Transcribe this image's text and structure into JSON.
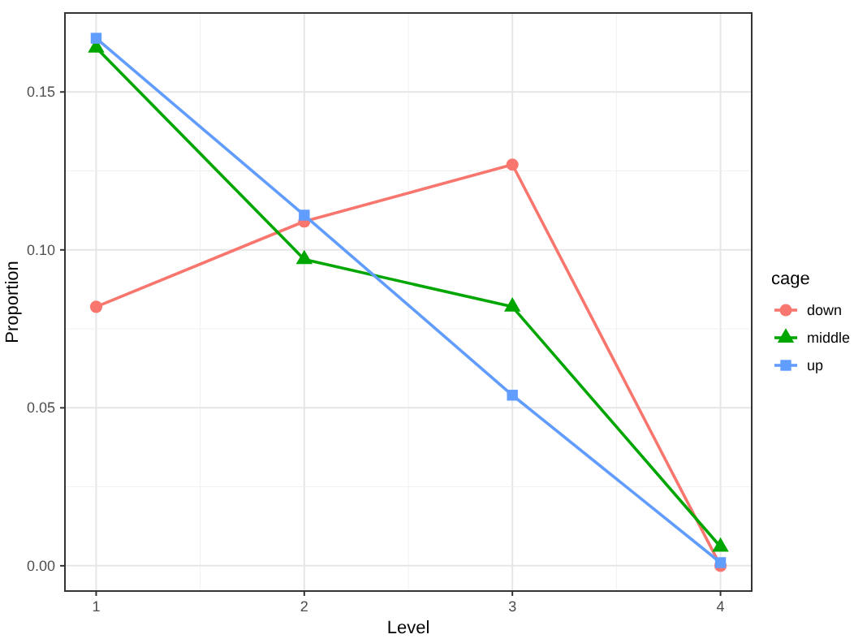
{
  "chart_data": {
    "type": "line",
    "xlabel": "Level",
    "ylabel": "Proportion",
    "legend_title": "cage",
    "legend": "right",
    "grid": true,
    "x": [
      1,
      2,
      3,
      4
    ],
    "xlim": [
      0.85,
      4.15
    ],
    "xticks": [
      1,
      2,
      3,
      4
    ],
    "ylim": [
      -0.008,
      0.175
    ],
    "yticks": [
      {
        "value": 0,
        "label": "0.00"
      },
      {
        "value": 0.05,
        "label": "0.05"
      },
      {
        "value": 0.1,
        "label": "0.10"
      },
      {
        "value": 0.15,
        "label": "0.15"
      }
    ],
    "series": [
      {
        "name": "down",
        "color": "#f8766d",
        "marker": "circle",
        "values": [
          0.082,
          0.109,
          0.127,
          0.0
        ]
      },
      {
        "name": "middle",
        "color": "#00a600",
        "marker": "triangle",
        "values": [
          0.164,
          0.097,
          0.082,
          0.006
        ]
      },
      {
        "name": "up",
        "color": "#619cff",
        "marker": "square",
        "values": [
          0.167,
          0.111,
          0.054,
          0.001
        ]
      }
    ]
  }
}
